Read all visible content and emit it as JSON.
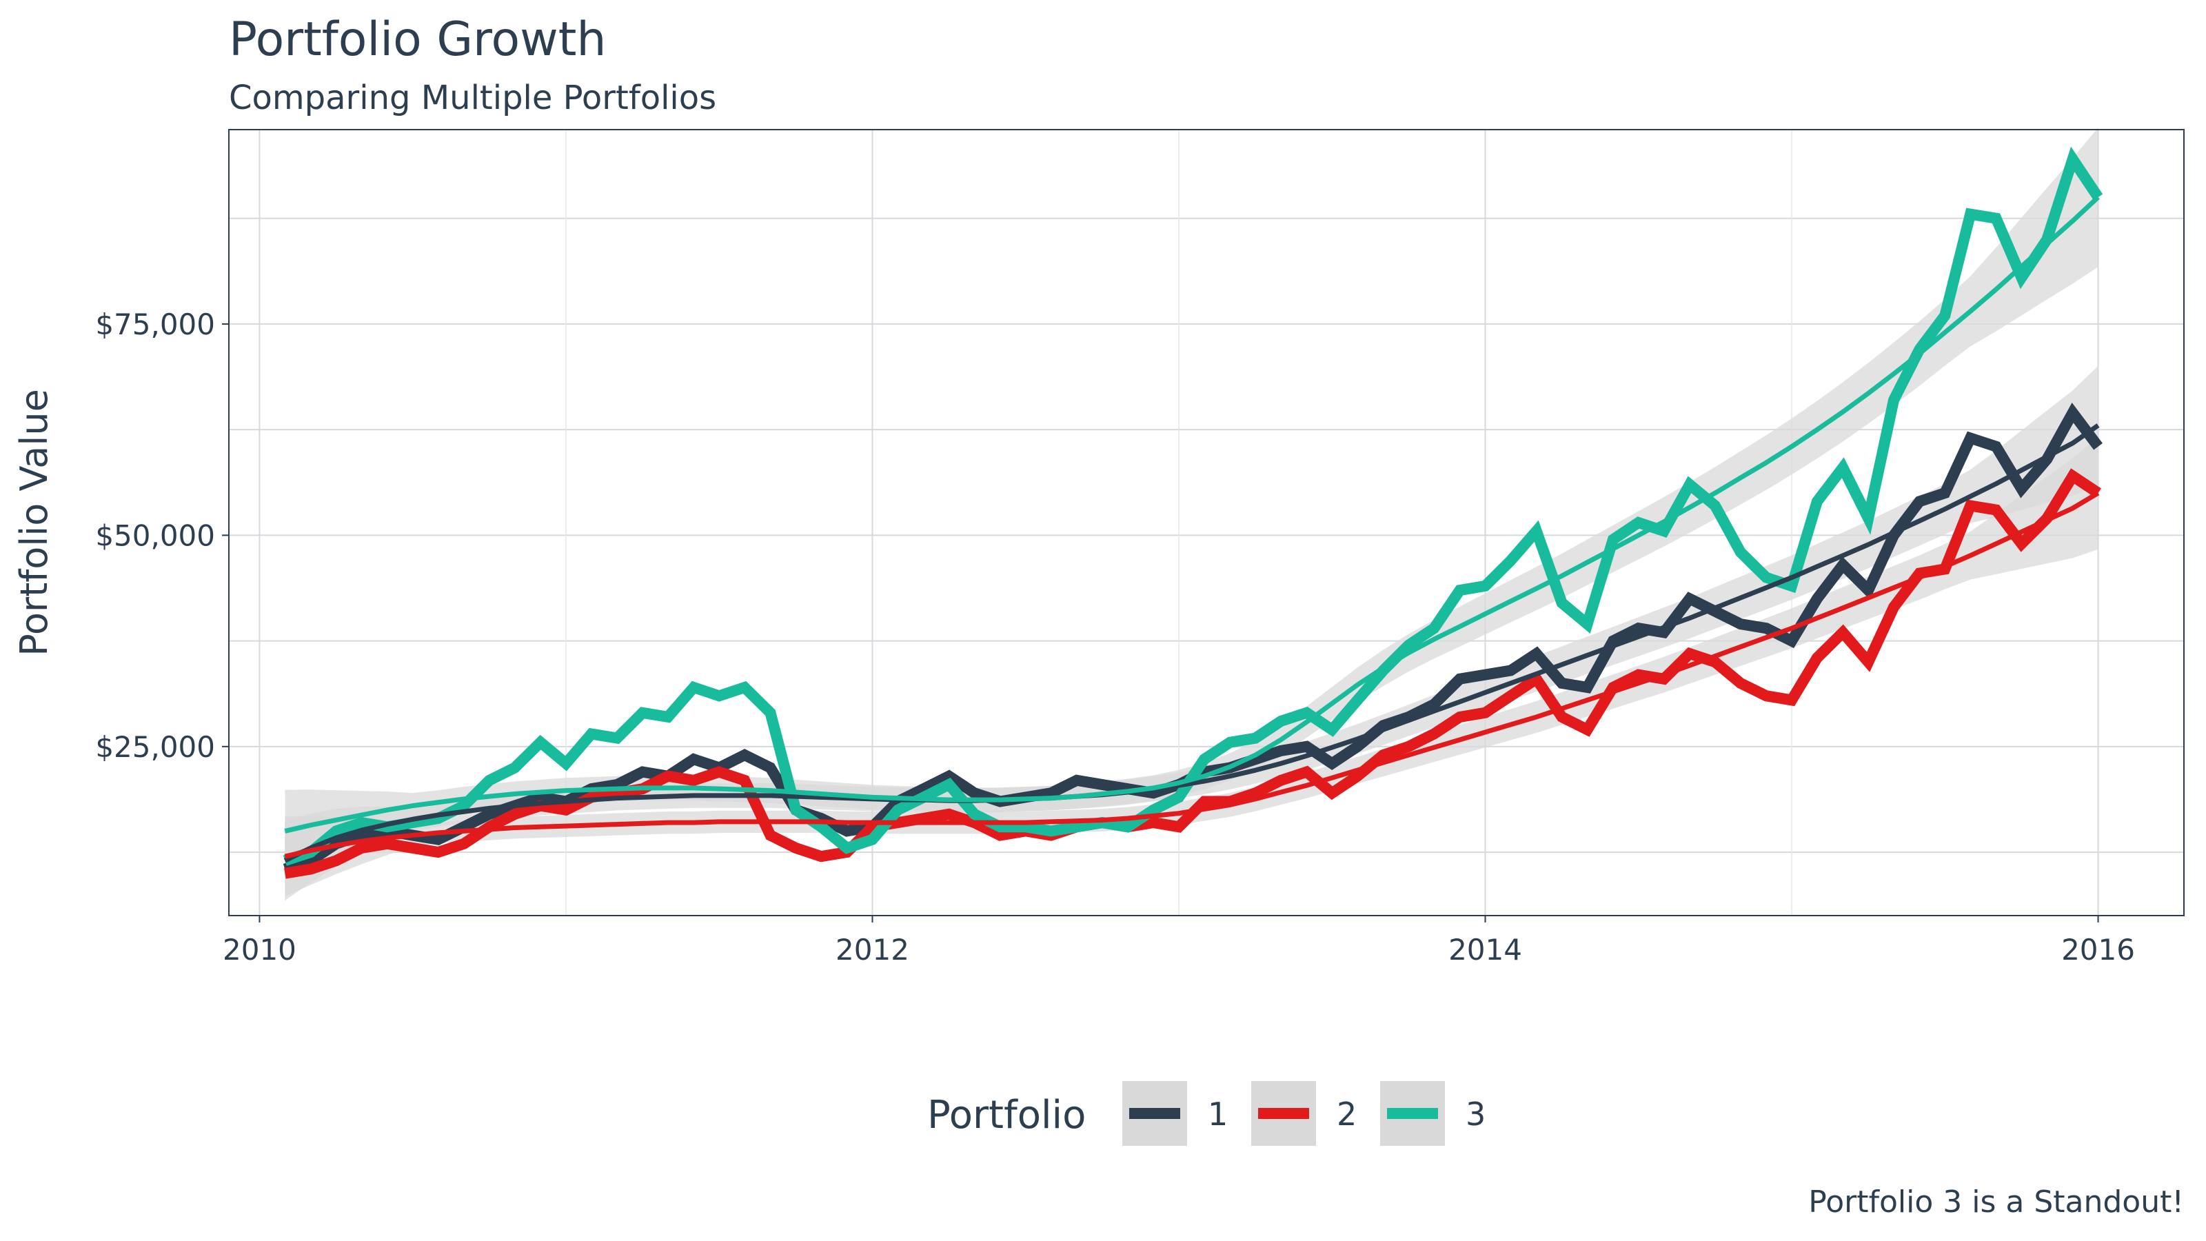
{
  "title": "Portfolio Growth",
  "subtitle": "Comparing Multiple Portfolios",
  "caption": "Portfolio 3 is a Standout!",
  "chart_data": {
    "type": "line",
    "title": "Portfolio Growth",
    "subtitle": "Comparing Multiple Portfolios",
    "xlabel": "",
    "ylabel": "Portfolio Value",
    "xlim": [
      2009.9,
      2016.28
    ],
    "ylim": [
      5000,
      98000
    ],
    "x_ticks": [
      2010,
      2012,
      2014,
      2016
    ],
    "x_tick_labels": [
      "2010",
      "2012",
      "2014",
      "2016"
    ],
    "y_ticks": [
      25000,
      50000,
      75000
    ],
    "y_tick_labels": [
      "$25,000",
      "$50,000",
      "$75,000"
    ],
    "y_minor_gridlines": [
      12500,
      37500,
      62500,
      87500
    ],
    "grid": true,
    "legend": {
      "title": "Portfolio",
      "position": "bottom"
    },
    "smooth": {
      "method": "loess",
      "confidence_band": true,
      "band_color": "#D9D9D9"
    },
    "x": [
      2010.083,
      2010.167,
      2010.25,
      2010.333,
      2010.417,
      2010.5,
      2010.583,
      2010.667,
      2010.75,
      2010.833,
      2010.917,
      2011,
      2011.083,
      2011.167,
      2011.25,
      2011.333,
      2011.417,
      2011.5,
      2011.583,
      2011.667,
      2011.75,
      2011.833,
      2011.917,
      2012,
      2012.083,
      2012.167,
      2012.25,
      2012.333,
      2012.417,
      2012.5,
      2012.583,
      2012.667,
      2012.75,
      2012.833,
      2012.917,
      2013,
      2013.083,
      2013.167,
      2013.25,
      2013.333,
      2013.417,
      2013.5,
      2013.583,
      2013.667,
      2013.75,
      2013.833,
      2013.917,
      2014,
      2014.083,
      2014.167,
      2014.25,
      2014.333,
      2014.417,
      2014.5,
      2014.583,
      2014.667,
      2014.75,
      2014.833,
      2014.917,
      2015,
      2015.083,
      2015.167,
      2015.25,
      2015.333,
      2015.417,
      2015.5,
      2015.583,
      2015.667,
      2015.75,
      2015.833,
      2015.917,
      2016
    ],
    "series": [
      {
        "name": "1",
        "color": "#2C3E50",
        "values": [
          10500,
          11500,
          13500,
          14500,
          15000,
          14500,
          14000,
          15500,
          17000,
          18000,
          19000,
          18500,
          20000,
          20500,
          22000,
          21500,
          23500,
          22500,
          24000,
          22500,
          17500,
          16500,
          15000,
          15500,
          18500,
          20000,
          21500,
          19500,
          18500,
          19000,
          19500,
          21000,
          20500,
          20000,
          19500,
          20500,
          22000,
          22500,
          23500,
          24500,
          25000,
          23000,
          25000,
          27500,
          28500,
          30000,
          33000,
          33500,
          34000,
          36000,
          32500,
          32000,
          37500,
          39000,
          38500,
          42500,
          41000,
          39500,
          39000,
          37500,
          42500,
          46500,
          43500,
          50000,
          54000,
          55000,
          61500,
          60500,
          55500,
          59000,
          64500,
          60500
        ],
        "smooth": [
          11500,
          13000,
          14200,
          15100,
          15800,
          16400,
          16900,
          17300,
          17700,
          18000,
          18300,
          18500,
          18700,
          18900,
          19000,
          19100,
          19200,
          19200,
          19200,
          19200,
          19100,
          19000,
          18900,
          18800,
          18700,
          18700,
          18600,
          18600,
          18700,
          18800,
          18900,
          19100,
          19300,
          19600,
          20000,
          20400,
          20900,
          21500,
          22200,
          23000,
          23900,
          24900,
          25900,
          27000,
          28100,
          29200,
          30300,
          31400,
          32500,
          33600,
          34700,
          35800,
          36900,
          38000,
          39100,
          40200,
          41400,
          42600,
          43800,
          45000,
          46300,
          47600,
          48900,
          50300,
          51700,
          53100,
          54600,
          56100,
          57700,
          59300,
          60900,
          63000
        ]
      },
      {
        "name": "2",
        "color": "#E31A1C",
        "values": [
          10000,
          10500,
          11500,
          13000,
          13500,
          13000,
          12500,
          13500,
          15500,
          17000,
          18000,
          17500,
          19000,
          19500,
          20000,
          21500,
          21000,
          22000,
          21000,
          14500,
          13000,
          12000,
          12500,
          15500,
          16000,
          16500,
          17000,
          16000,
          14500,
          15000,
          14500,
          15500,
          16000,
          15500,
          16000,
          15500,
          18500,
          18500,
          19500,
          21000,
          22000,
          19500,
          21500,
          24000,
          25000,
          26500,
          28500,
          29000,
          31000,
          33000,
          28500,
          27000,
          32000,
          33500,
          33000,
          36000,
          35000,
          32500,
          31000,
          30500,
          35500,
          38500,
          35000,
          41500,
          45500,
          46000,
          53500,
          53000,
          49000,
          52000,
          57000,
          55000
        ],
        "smooth": [
          12000,
          12700,
          13300,
          13800,
          14200,
          14500,
          14800,
          15000,
          15200,
          15400,
          15500,
          15600,
          15700,
          15800,
          15900,
          16000,
          16000,
          16100,
          16100,
          16100,
          16100,
          16100,
          16000,
          16000,
          16000,
          16000,
          16000,
          16000,
          16000,
          16000,
          16100,
          16200,
          16300,
          16500,
          16800,
          17100,
          17600,
          18100,
          18800,
          19600,
          20400,
          21300,
          22200,
          23100,
          24000,
          24900,
          25800,
          26700,
          27600,
          28500,
          29500,
          30500,
          31500,
          32500,
          33500,
          34600,
          35700,
          36800,
          37900,
          39000,
          40200,
          41400,
          42600,
          43800,
          45000,
          46300,
          47600,
          49000,
          50400,
          51800,
          53200,
          55000
        ]
      },
      {
        "name": "3",
        "color": "#18BC9C",
        "values": [
          11500,
          12500,
          15000,
          16000,
          15500,
          16000,
          16500,
          18000,
          21000,
          22500,
          25500,
          23000,
          26500,
          26000,
          29000,
          28500,
          32000,
          31000,
          32000,
          29000,
          17500,
          15500,
          13000,
          14000,
          17500,
          19000,
          20500,
          17000,
          15500,
          15500,
          15000,
          15500,
          16000,
          15500,
          17500,
          19000,
          23500,
          25500,
          26000,
          28000,
          29000,
          27000,
          30500,
          34000,
          37000,
          39000,
          43500,
          44000,
          47000,
          50500,
          42000,
          39500,
          49500,
          51500,
          50500,
          56000,
          53500,
          48000,
          45000,
          44000,
          54000,
          58000,
          52000,
          66000,
          72000,
          76000,
          88000,
          87500,
          80500,
          85000,
          94500,
          90000
        ],
        "smooth": [
          15000,
          15700,
          16300,
          16900,
          17500,
          18000,
          18400,
          18800,
          19100,
          19400,
          19600,
          19800,
          19900,
          20000,
          20100,
          20100,
          20100,
          20000,
          19900,
          19800,
          19600,
          19400,
          19200,
          19000,
          18900,
          18800,
          18700,
          18700,
          18700,
          18800,
          18900,
          19100,
          19400,
          19700,
          20100,
          20700,
          21500,
          22600,
          24000,
          25800,
          27900,
          30100,
          32300,
          34300,
          36100,
          37700,
          39200,
          40700,
          42200,
          43700,
          45200,
          46800,
          48400,
          50000,
          51600,
          53300,
          55000,
          56800,
          58600,
          60500,
          62500,
          64600,
          66800,
          69100,
          71500,
          74000,
          76500,
          79100,
          81800,
          84500,
          87200,
          90000
        ]
      }
    ]
  }
}
